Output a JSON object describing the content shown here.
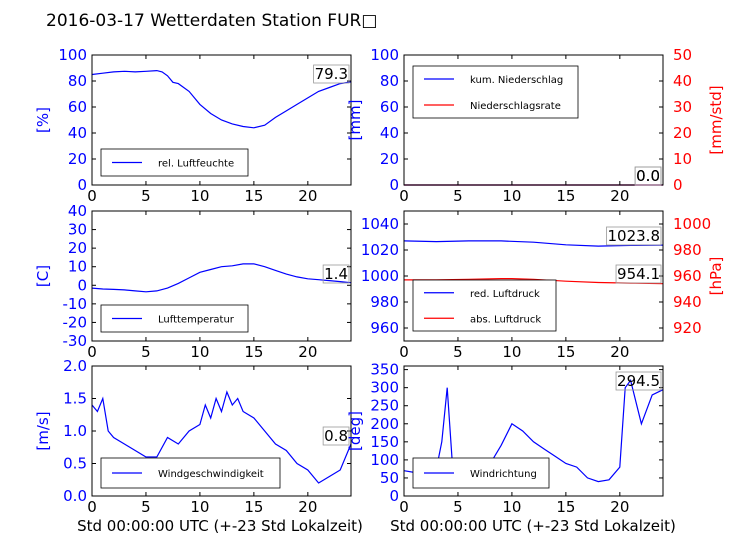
{
  "title": "2016-03-17 Wetterdaten Station FUR□",
  "colors": {
    "axis_left": "#0000ff",
    "axis_right": "#ff0000",
    "series_blue": "#0000ff",
    "series_red": "#ff0000"
  },
  "chart_data": [
    {
      "type": "line",
      "ylabel": "[%]",
      "xlim": [
        0,
        24
      ],
      "ylim": [
        0,
        100
      ],
      "xticks": [
        0,
        5,
        10,
        15,
        20
      ],
      "yticks": [
        0,
        20,
        40,
        60,
        80,
        100
      ],
      "legend": "lower-left",
      "last_value": "79.3",
      "series": [
        {
          "name": "rel. Luftfeuchte",
          "color": "#0000ff",
          "x": [
            0,
            1,
            2,
            3,
            4,
            5,
            6,
            6.5,
            7,
            7.5,
            8,
            9,
            10,
            11,
            12,
            13,
            14,
            15,
            16,
            17,
            18,
            19,
            20,
            21,
            22,
            23,
            24
          ],
          "y": [
            85,
            86,
            87,
            87.5,
            87,
            87.5,
            88,
            87,
            84,
            79,
            78,
            72,
            62,
            55,
            50,
            47,
            45,
            44,
            46,
            52,
            57,
            62,
            67,
            72,
            75,
            78,
            79.3
          ]
        }
      ]
    },
    {
      "type": "line",
      "ylabel": "[mm]",
      "ylabel_right": "[mm/std]",
      "xlim": [
        0,
        24
      ],
      "ylim": [
        0,
        100
      ],
      "ylim_right": [
        0,
        50
      ],
      "xticks": [
        0,
        5,
        10,
        15,
        20
      ],
      "yticks": [
        0,
        20,
        40,
        60,
        80,
        100
      ],
      "yticks_right": [
        0,
        10,
        20,
        30,
        40,
        50
      ],
      "legend": "upper-left",
      "last_value": "0.0",
      "last_value_2": "0.0",
      "series": [
        {
          "name": "kum. Niederschlag",
          "color": "#0000ff",
          "x": [
            0,
            24
          ],
          "y": [
            0,
            0
          ]
        },
        {
          "name": "Niederschlagsrate",
          "color": "#ff0000",
          "axis": "right",
          "x": [
            0,
            24
          ],
          "y": [
            0,
            0
          ]
        }
      ]
    },
    {
      "type": "line",
      "ylabel": "[C]",
      "xlim": [
        0,
        24
      ],
      "ylim": [
        -30,
        40
      ],
      "xticks": [
        0,
        5,
        10,
        15,
        20
      ],
      "yticks": [
        -30,
        -20,
        -10,
        0,
        10,
        20,
        30,
        40
      ],
      "legend": "lower-left",
      "last_value": "1.4",
      "series": [
        {
          "name": "Lufttemperatur",
          "color": "#0000ff",
          "x": [
            0,
            1,
            2,
            3,
            4,
            5,
            6,
            7,
            8,
            9,
            10,
            11,
            12,
            13,
            14,
            15,
            16,
            17,
            18,
            19,
            20,
            21,
            22,
            23,
            24
          ],
          "y": [
            -1.5,
            -2,
            -2.2,
            -2.5,
            -3,
            -3.5,
            -3,
            -1.5,
            1,
            4,
            7,
            8.5,
            10,
            10.5,
            11.5,
            11.5,
            10,
            8,
            6,
            4.5,
            3.5,
            3,
            2.5,
            2,
            1.4
          ]
        }
      ]
    },
    {
      "type": "line",
      "ylabel_right": "[hPa]",
      "xlim": [
        0,
        24
      ],
      "ylim": [
        950,
        1050
      ],
      "ylim_right": [
        910,
        1010
      ],
      "xticks": [
        0,
        5,
        10,
        15,
        20
      ],
      "yticks": [
        960,
        980,
        1000,
        1020,
        1040
      ],
      "yticks_right": [
        920,
        940,
        960,
        980,
        1000
      ],
      "legend": "lower-left",
      "last_value": "1023.8",
      "last_value_2": "954.1",
      "series": [
        {
          "name": "red. Luftdruck",
          "color": "#0000ff",
          "x": [
            0,
            3,
            6,
            9,
            12,
            15,
            18,
            21,
            24
          ],
          "y": [
            1027,
            1026.5,
            1027,
            1027,
            1026,
            1024,
            1023,
            1023.5,
            1023.8
          ]
        },
        {
          "name": "abs. Luftdruck",
          "color": "#ff0000",
          "axis": "right",
          "x": [
            0,
            3,
            6,
            9,
            10,
            12,
            15,
            18,
            21,
            24
          ],
          "y": [
            957,
            957,
            957.5,
            958,
            958,
            957.5,
            956,
            955,
            954.5,
            954.1
          ]
        }
      ]
    },
    {
      "type": "line",
      "ylabel": "[m/s]",
      "xlim": [
        0,
        24
      ],
      "ylim": [
        0,
        2.0
      ],
      "xticks": [
        0,
        5,
        10,
        15,
        20
      ],
      "yticks": [
        0.0,
        0.5,
        1.0,
        1.5,
        2.0
      ],
      "legend": "lower-right",
      "last_value": "0.8",
      "series": [
        {
          "name": "Windgeschwindigkeit",
          "color": "#0000ff",
          "x": [
            0,
            0.5,
            1,
            1.5,
            2,
            3,
            4,
            5,
            6,
            7,
            8,
            9,
            10,
            10.5,
            11,
            11.5,
            12,
            12.5,
            13,
            13.5,
            14,
            15,
            16,
            17,
            18,
            19,
            20,
            21,
            22,
            23,
            24
          ],
          "y": [
            1.4,
            1.3,
            1.5,
            1.0,
            0.9,
            0.8,
            0.7,
            0.6,
            0.6,
            0.9,
            0.8,
            1.0,
            1.1,
            1.4,
            1.2,
            1.5,
            1.3,
            1.6,
            1.4,
            1.5,
            1.3,
            1.2,
            1.0,
            0.8,
            0.7,
            0.5,
            0.4,
            0.2,
            0.3,
            0.4,
            0.8
          ]
        }
      ]
    },
    {
      "type": "line",
      "ylabel": "[deg]",
      "xlim": [
        0,
        24
      ],
      "ylim": [
        0,
        360
      ],
      "xticks": [
        0,
        5,
        10,
        15,
        20
      ],
      "yticks": [
        0,
        50,
        100,
        150,
        200,
        250,
        300,
        350
      ],
      "legend": "lower-right",
      "last_value": "294.5",
      "series": [
        {
          "name": "Windrichtung",
          "color": "#0000ff",
          "x": [
            0,
            1,
            2,
            3,
            3.5,
            4,
            4.5,
            5,
            6,
            7,
            8,
            9,
            10,
            11,
            12,
            13,
            14,
            15,
            16,
            17,
            18,
            19,
            20,
            20.5,
            21,
            22,
            23,
            24
          ],
          "y": [
            70,
            65,
            60,
            75,
            150,
            300,
            80,
            70,
            75,
            80,
            90,
            140,
            200,
            180,
            150,
            130,
            110,
            90,
            80,
            50,
            40,
            45,
            80,
            300,
            320,
            200,
            280,
            294.5
          ]
        }
      ]
    }
  ],
  "xlabel": "Std 00:00:00 UTC (+-23 Std Lokalzeit)"
}
